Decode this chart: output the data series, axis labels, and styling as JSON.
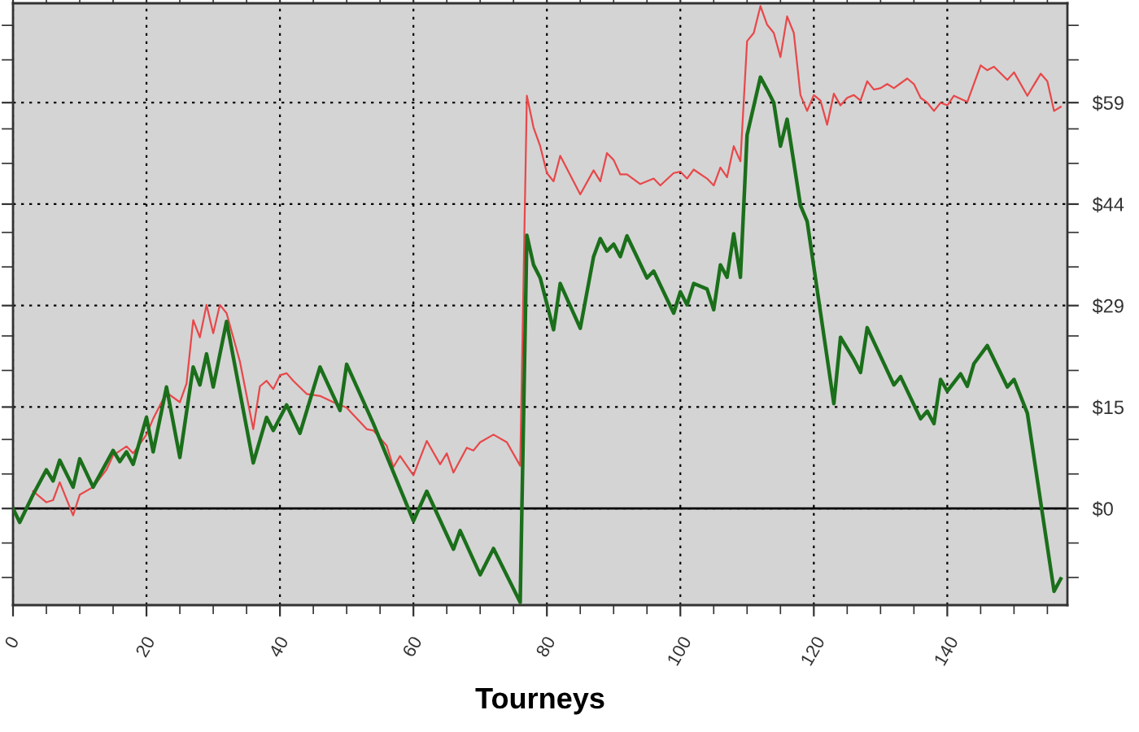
{
  "chart_data": {
    "type": "line",
    "xlabel": "Tourneys",
    "xlim": [
      0,
      158
    ],
    "ylim": [
      -14,
      73.2
    ],
    "xticks": [
      0,
      {
        "value": 5,
        "label": null
      },
      {
        "value": 10,
        "label": null
      },
      {
        "value": 15,
        "label": null
      },
      20,
      {
        "value": 25,
        "label": null
      },
      {
        "value": 30,
        "label": null
      },
      {
        "value": 35,
        "label": null
      },
      40,
      {
        "value": 45,
        "label": null
      },
      {
        "value": 50,
        "label": null
      },
      {
        "value": 55,
        "label": null
      },
      60,
      {
        "value": 65,
        "label": null
      },
      {
        "value": 70,
        "label": null
      },
      {
        "value": 75,
        "label": null
      },
      80,
      {
        "value": 85,
        "label": null
      },
      {
        "value": 90,
        "label": null
      },
      {
        "value": 95,
        "label": null
      },
      100,
      {
        "value": 105,
        "label": null
      },
      {
        "value": 110,
        "label": null
      },
      {
        "value": 115,
        "label": null
      },
      120,
      {
        "value": 125,
        "label": null
      },
      {
        "value": 130,
        "label": null
      },
      {
        "value": 135,
        "label": null
      },
      140,
      {
        "value": 145,
        "label": null
      },
      {
        "value": 150,
        "label": null
      },
      {
        "value": 155,
        "label": null
      }
    ],
    "yticks": [
      {
        "value": -10,
        "label": null
      },
      {
        "value": -5,
        "label": null
      },
      {
        "value": 0,
        "label": "$0"
      },
      {
        "value": 5,
        "label": null
      },
      {
        "value": 10,
        "label": null
      },
      {
        "value": 14.7,
        "label": "$15"
      },
      {
        "value": 20,
        "label": null
      },
      {
        "value": 25,
        "label": null
      },
      {
        "value": 29.4,
        "label": "$29"
      },
      {
        "value": 35,
        "label": null
      },
      {
        "value": 40,
        "label": null
      },
      {
        "value": 44.1,
        "label": "$44"
      },
      {
        "value": 50,
        "label": null
      },
      {
        "value": 55,
        "label": null
      },
      {
        "value": 58.8,
        "label": "$59"
      },
      {
        "value": 65,
        "label": null
      },
      {
        "value": 70,
        "label": null
      }
    ],
    "grid": true,
    "legend": false,
    "marker": "none",
    "line_style": "solid",
    "ref_lines": [
      {
        "axis": "y",
        "value": 0,
        "color": "#000000",
        "line_style": "solid"
      }
    ],
    "series": [
      {
        "color": "#e8484a",
        "x": [
          3,
          5,
          6,
          7,
          9,
          10,
          12,
          14,
          15,
          17,
          18,
          20,
          21,
          23,
          25,
          26,
          27,
          28,
          29,
          30,
          31,
          32,
          34,
          36,
          37,
          38,
          39,
          40,
          41,
          42,
          44,
          46,
          48,
          50,
          53,
          54,
          56,
          57,
          58,
          60,
          62,
          64,
          65,
          66,
          68,
          69,
          70,
          72,
          74,
          76,
          77,
          78,
          79,
          80,
          81,
          82,
          85,
          87,
          88,
          89,
          90,
          91,
          92,
          94,
          96,
          97,
          99,
          100,
          101,
          102,
          104,
          105,
          106,
          107,
          108,
          109,
          110,
          111,
          112,
          113,
          114,
          115,
          116,
          117,
          118,
          119,
          120,
          121,
          122,
          123,
          124,
          125,
          126,
          127,
          128,
          129,
          130,
          131,
          132,
          134,
          135,
          136,
          137,
          138,
          139,
          140,
          141,
          143,
          145,
          146,
          147,
          149,
          150,
          152,
          154,
          155,
          156,
          157
        ],
        "values": [
          2.5,
          0.9,
          1.2,
          3.8,
          -1,
          2,
          3.1,
          5.6,
          7.7,
          9,
          8,
          10.7,
          13,
          16.8,
          15.4,
          18.1,
          27.3,
          24.8,
          29.5,
          25.4,
          29.5,
          28.3,
          21.3,
          11.5,
          17.7,
          18.5,
          17.3,
          19.3,
          19.6,
          18.5,
          16.6,
          16.3,
          15.4,
          14.6,
          11.5,
          11.3,
          9.1,
          6,
          7.6,
          4.8,
          9.8,
          6.4,
          8,
          5.2,
          8.8,
          8.4,
          9.6,
          10.7,
          9.6,
          6.2,
          59.8,
          55.2,
          52.5,
          48.6,
          47.4,
          51.1,
          45.5,
          49,
          47.4,
          51.5,
          50.5,
          48.4,
          48.4,
          47,
          47.8,
          46.8,
          48.6,
          48.8,
          47.8,
          49.1,
          47.8,
          46.8,
          49.4,
          48,
          52.5,
          50.3,
          67.7,
          68.9,
          72.8,
          70.1,
          68.9,
          65.4,
          71.3,
          68.9,
          59.9,
          57.6,
          59.9,
          59.1,
          55.6,
          60.1,
          58.4,
          59.5,
          59.9,
          59.1,
          61.9,
          60.7,
          60.9,
          61.5,
          60.9,
          62.3,
          61.5,
          59.5,
          58.8,
          57.6,
          58.8,
          58.4,
          59.8,
          58.9,
          64.2,
          63.5,
          64,
          62.1,
          63.2,
          59.8,
          63,
          61.9,
          57.6,
          58.2
        ]
      },
      {
        "color": "#1b6f1b",
        "x": [
          0,
          1,
          3,
          5,
          6,
          7,
          9,
          10,
          12,
          15,
          16,
          17,
          18,
          20,
          21,
          23,
          25,
          27,
          28,
          29,
          30,
          32,
          36,
          38,
          39,
          41,
          43,
          46,
          49,
          50,
          54,
          60,
          62,
          66,
          67,
          70,
          72,
          76,
          77,
          78,
          79,
          81,
          82,
          85,
          87,
          88,
          89,
          90,
          91,
          92,
          95,
          96,
          99,
          100,
          101,
          102,
          104,
          105,
          106,
          107,
          108,
          109,
          110,
          112,
          113,
          114,
          115,
          116,
          118,
          119,
          123,
          124,
          126,
          127,
          128,
          132,
          133,
          136,
          137,
          138,
          139,
          140,
          142,
          143,
          144,
          146,
          149,
          150,
          152,
          156,
          157
        ],
        "values": [
          0,
          -2,
          2,
          5.6,
          4,
          7,
          3.1,
          7.2,
          3.1,
          8.4,
          6.8,
          8.2,
          6.4,
          13.2,
          8.2,
          17.6,
          7.4,
          20.5,
          17.9,
          22.4,
          17.6,
          27.1,
          6.6,
          13.2,
          11.3,
          15,
          10.9,
          20.5,
          14.2,
          20.9,
          12.3,
          -1.8,
          2.5,
          -5.9,
          -3.2,
          -9.6,
          -5.8,
          -13.6,
          39.6,
          35.3,
          33.4,
          25.9,
          32.6,
          26.1,
          36.5,
          39.1,
          37.3,
          38.3,
          36.5,
          39.5,
          33.4,
          34.4,
          28.3,
          31.4,
          29.5,
          32.6,
          31.8,
          28.8,
          35.3,
          33.5,
          39.8,
          33.5,
          54.1,
          62.5,
          60.7,
          58.8,
          52.5,
          56.4,
          43.9,
          41.6,
          15.2,
          24.8,
          21.6,
          19.7,
          26.2,
          17.9,
          19.1,
          13,
          14.1,
          12.3,
          18.7,
          17,
          19.5,
          17.7,
          21,
          23.6,
          17.6,
          18.7,
          13.8,
          -12,
          -10.2
        ]
      }
    ]
  }
}
